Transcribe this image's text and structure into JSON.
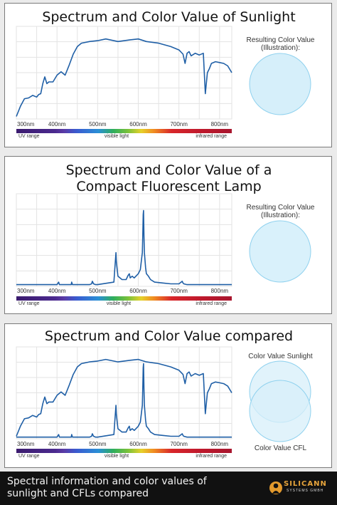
{
  "charts": [
    {
      "title": "Spectrum and Color Value of Sunlight",
      "color_caption": "Resulting Color Value\n(Illustration):",
      "circle_color": "#d6effa",
      "circle_stroke": "#8fd1ee"
    },
    {
      "title": "Spectrum and Color Value of a\nCompact Fluorescent Lamp",
      "color_caption": "Resulting Color Value\n(Illustration):",
      "circle_color": "#d9f1fb",
      "circle_stroke": "#8fd1ee"
    },
    {
      "title": "Spectrum and Color Value compared",
      "caption_top": "Color Value Sunlight",
      "caption_bottom": "Color Value CFL",
      "circle_color": "#d7effa",
      "circle_stroke": "#8fd1ee"
    }
  ],
  "band_labels": {
    "uv": "UV range",
    "visible": "visible light",
    "ir": "infrared range"
  },
  "footer": {
    "text": "Spectral information and color values of\nsunlight and CFLs compared",
    "brand": "SILICANN",
    "brand_sub": "SYSTEMS GMBH"
  },
  "colors": {
    "line": "#1f5fa6",
    "grid": "#e3e3e3"
  },
  "chart_data": [
    {
      "type": "line",
      "title": "Spectrum and Color Value of Sunlight",
      "xlabel": "",
      "ylabel": "",
      "xlim": [
        300,
        830
      ],
      "ylim": [
        0,
        1.1
      ],
      "xticks": [
        "300nm",
        "400nm",
        "500nm",
        "600nm",
        "700nm",
        "800nm"
      ],
      "grid": true,
      "series": [
        {
          "x": [
            300,
            310,
            320,
            330,
            340,
            350,
            355,
            360,
            365,
            370,
            375,
            380,
            390,
            400,
            410,
            420,
            430,
            440,
            450,
            460,
            480,
            500,
            520,
            550,
            580,
            600,
            620,
            650,
            680,
            700,
            710,
            715,
            720,
            725,
            730,
            740,
            750,
            760,
            765,
            770,
            775,
            780,
            790,
            800,
            810,
            820,
            830
          ],
          "y": [
            0.03,
            0.15,
            0.24,
            0.25,
            0.28,
            0.26,
            0.29,
            0.3,
            0.42,
            0.5,
            0.42,
            0.44,
            0.44,
            0.52,
            0.56,
            0.52,
            0.64,
            0.77,
            0.86,
            0.9,
            0.92,
            0.93,
            0.95,
            0.92,
            0.94,
            0.95,
            0.92,
            0.9,
            0.86,
            0.82,
            0.77,
            0.66,
            0.78,
            0.8,
            0.75,
            0.78,
            0.76,
            0.78,
            0.3,
            0.55,
            0.6,
            0.66,
            0.68,
            0.67,
            0.66,
            0.63,
            0.55
          ]
        }
      ]
    },
    {
      "type": "line",
      "title": "Spectrum and Color Value of a Compact Fluorescent Lamp",
      "xlabel": "",
      "ylabel": "",
      "xlim": [
        300,
        830
      ],
      "ylim": [
        0,
        1.1
      ],
      "xticks": [
        "300nm",
        "400nm",
        "500nm",
        "600nm",
        "700nm",
        "800nm"
      ],
      "grid": true,
      "series": [
        {
          "x": [
            300,
            400,
            404,
            406,
            408,
            420,
            430,
            435,
            436,
            438,
            450,
            470,
            480,
            485,
            487,
            490,
            495,
            500,
            540,
            542,
            544,
            545,
            546,
            548,
            550,
            560,
            570,
            575,
            578,
            580,
            585,
            590,
            600,
            605,
            610,
            611,
            612,
            613,
            614,
            615,
            618,
            620,
            625,
            630,
            640,
            660,
            680,
            700,
            708,
            710,
            712,
            720,
            760,
            830
          ],
          "y": [
            0.02,
            0.02,
            0.05,
            0.02,
            0.02,
            0.02,
            0.02,
            0.02,
            0.05,
            0.02,
            0.02,
            0.02,
            0.02,
            0.03,
            0.06,
            0.03,
            0.02,
            0.02,
            0.05,
            0.2,
            0.33,
            0.4,
            0.3,
            0.2,
            0.12,
            0.08,
            0.08,
            0.13,
            0.15,
            0.1,
            0.12,
            0.1,
            0.15,
            0.2,
            0.4,
            0.6,
            0.85,
            0.9,
            0.6,
            0.4,
            0.22,
            0.15,
            0.12,
            0.08,
            0.05,
            0.04,
            0.03,
            0.03,
            0.06,
            0.04,
            0.03,
            0.02,
            0.02,
            0.02
          ]
        }
      ]
    },
    {
      "type": "line",
      "title": "Spectrum and Color Value compared",
      "xlabel": "",
      "ylabel": "",
      "xlim": [
        300,
        830
      ],
      "ylim": [
        0,
        1.1
      ],
      "xticks": [
        "300nm",
        "400nm",
        "500nm",
        "600nm",
        "700nm",
        "800nm"
      ],
      "grid": true,
      "series": [
        {
          "x": [
            300,
            310,
            320,
            330,
            340,
            350,
            355,
            360,
            365,
            370,
            375,
            380,
            390,
            400,
            410,
            420,
            430,
            440,
            450,
            460,
            480,
            500,
            520,
            550,
            580,
            600,
            620,
            650,
            680,
            700,
            710,
            715,
            720,
            725,
            730,
            740,
            750,
            760,
            765,
            770,
            775,
            780,
            790,
            800,
            810,
            820,
            830
          ],
          "y": [
            0.03,
            0.15,
            0.24,
            0.25,
            0.28,
            0.26,
            0.29,
            0.3,
            0.42,
            0.5,
            0.42,
            0.44,
            0.44,
            0.52,
            0.56,
            0.52,
            0.64,
            0.77,
            0.86,
            0.9,
            0.92,
            0.93,
            0.95,
            0.92,
            0.94,
            0.95,
            0.92,
            0.9,
            0.86,
            0.82,
            0.77,
            0.66,
            0.78,
            0.8,
            0.75,
            0.78,
            0.76,
            0.78,
            0.3,
            0.55,
            0.6,
            0.66,
            0.68,
            0.67,
            0.66,
            0.63,
            0.55
          ]
        },
        {
          "x": [
            300,
            400,
            404,
            406,
            408,
            420,
            430,
            435,
            436,
            438,
            450,
            470,
            480,
            485,
            487,
            490,
            495,
            500,
            540,
            542,
            544,
            545,
            546,
            548,
            550,
            560,
            570,
            575,
            578,
            580,
            585,
            590,
            600,
            605,
            610,
            611,
            612,
            613,
            614,
            615,
            618,
            620,
            625,
            630,
            640,
            660,
            680,
            700,
            708,
            710,
            712,
            720,
            760,
            830
          ],
          "y": [
            0.02,
            0.02,
            0.05,
            0.02,
            0.02,
            0.02,
            0.02,
            0.02,
            0.05,
            0.02,
            0.02,
            0.02,
            0.02,
            0.03,
            0.06,
            0.03,
            0.02,
            0.02,
            0.05,
            0.2,
            0.33,
            0.4,
            0.3,
            0.2,
            0.12,
            0.08,
            0.08,
            0.13,
            0.15,
            0.1,
            0.12,
            0.1,
            0.15,
            0.2,
            0.4,
            0.6,
            0.85,
            0.9,
            0.6,
            0.4,
            0.22,
            0.15,
            0.12,
            0.08,
            0.05,
            0.04,
            0.03,
            0.03,
            0.06,
            0.04,
            0.03,
            0.02,
            0.02,
            0.02
          ]
        }
      ]
    }
  ]
}
